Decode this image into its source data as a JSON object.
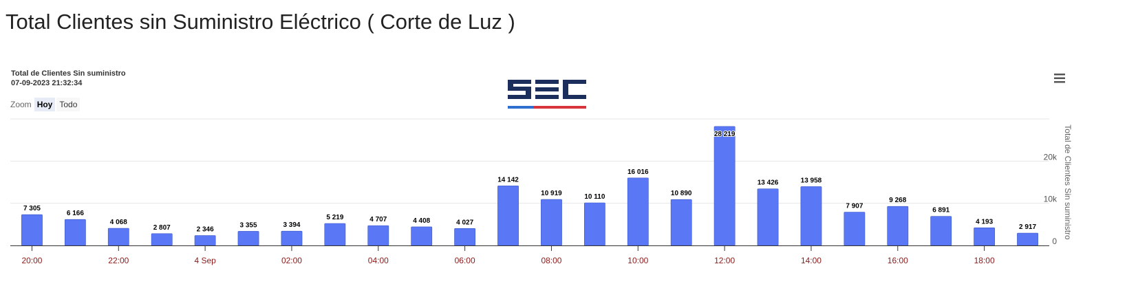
{
  "page": {
    "title": "Total Clientes sin Suministro Eléctrico ( Corte de Luz )"
  },
  "chart_header": {
    "title": "Total de Clientes Sin suministro",
    "timestamp": "07-09-2023 21:32:34"
  },
  "zoom": {
    "label": "Zoom",
    "buttons": [
      "Hoy",
      "Todo"
    ],
    "active": "Hoy"
  },
  "logo": {
    "name": "sec-logo",
    "colors": {
      "primary": "#1c2f5c",
      "blue": "#2f6fd0",
      "red": "#d8343c"
    }
  },
  "colors": {
    "bar": "#5a78f5",
    "x_tick": "#8b1a1a",
    "grid": "#e6e6e6"
  },
  "chart_data": {
    "type": "bar",
    "title": "Total de Clientes Sin suministro",
    "ylabel": "Total de Clientes Sin suministro",
    "y_axis_side": "right",
    "ylim": [
      0,
      30000
    ],
    "y_ticks": [
      {
        "value": 0,
        "label": "0"
      },
      {
        "value": 10000,
        "label": "10k"
      },
      {
        "value": 20000,
        "label": "20k"
      }
    ],
    "hours": [
      20,
      21,
      22,
      23,
      24,
      25,
      26,
      27,
      28,
      29,
      30,
      31,
      32,
      33,
      34,
      35,
      36,
      37,
      38,
      39,
      40,
      41,
      42,
      43
    ],
    "values": [
      7305,
      6166,
      4068,
      2807,
      2346,
      3355,
      3394,
      5219,
      4707,
      4408,
      4027,
      14142,
      10919,
      10110,
      16016,
      10890,
      28219,
      13426,
      13958,
      7907,
      9268,
      6891,
      4193,
      2917
    ],
    "value_labels": [
      "7 305",
      "6 166",
      "4 068",
      "2 807",
      "2 346",
      "3 355",
      "3 394",
      "5 219",
      "4 707",
      "4 408",
      "4 027",
      "14 142",
      "10 919",
      "10 110",
      "16 016",
      "10 890",
      "28 219",
      "13 426",
      "13 958",
      "7 907",
      "9 268",
      "6 891",
      "4 193",
      "2 917"
    ],
    "x_ticks": [
      {
        "hour": 20,
        "label": "20:00"
      },
      {
        "hour": 22,
        "label": "22:00"
      },
      {
        "hour": 24,
        "label": "4 Sep"
      },
      {
        "hour": 26,
        "label": "02:00"
      },
      {
        "hour": 28,
        "label": "04:00"
      },
      {
        "hour": 30,
        "label": "06:00"
      },
      {
        "hour": 32,
        "label": "08:00"
      },
      {
        "hour": 34,
        "label": "10:00"
      },
      {
        "hour": 36,
        "label": "12:00"
      },
      {
        "hour": 38,
        "label": "14:00"
      },
      {
        "hour": 40,
        "label": "16:00"
      },
      {
        "hour": 42,
        "label": "18:00"
      }
    ],
    "grid": true,
    "legend": "none"
  }
}
